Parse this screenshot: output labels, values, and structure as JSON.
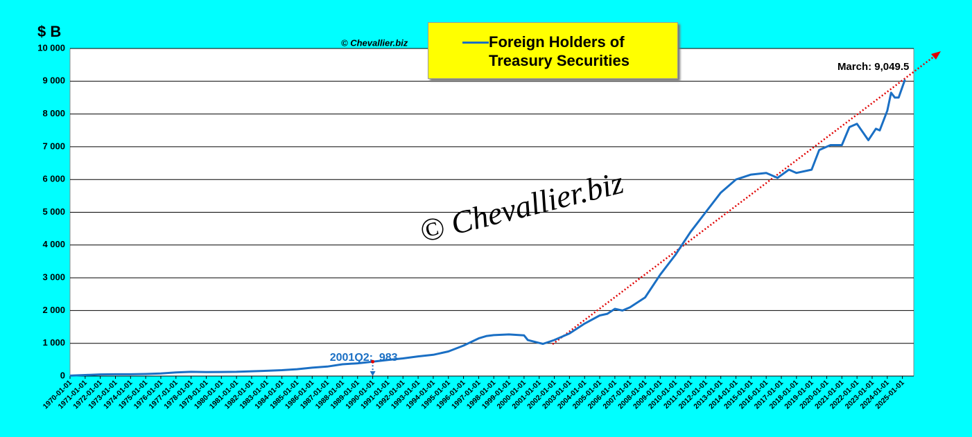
{
  "chart_data": {
    "type": "line",
    "y_label": "$ B",
    "credit": "© Chevallier.biz",
    "watermark": "© Chevallier.biz",
    "annotations": [
      {
        "text": "March: 9,049.5"
      },
      {
        "text": "2001Q2:  983"
      }
    ],
    "xlim": [
      1970,
      2025.75
    ],
    "ylim": [
      0,
      10000
    ],
    "yticks": [
      0,
      {
        "value": 1000,
        "label": "1 000"
      },
      {
        "value": 2000,
        "label": "2 000"
      },
      {
        "value": 3000,
        "label": "3 000"
      },
      {
        "value": 4000,
        "label": "4 000"
      },
      {
        "value": 5000,
        "label": "5 000"
      },
      {
        "value": 6000,
        "label": "6 000"
      },
      {
        "value": 7000,
        "label": "7 000"
      },
      {
        "value": 8000,
        "label": "8 000"
      },
      {
        "value": 9000,
        "label": "9 000"
      },
      {
        "value": 10000,
        "label": "10 000"
      }
    ],
    "xticks": [
      {
        "value": 1970,
        "label": "1970-01-01"
      },
      {
        "value": 1971,
        "label": "1971-01-01"
      },
      {
        "value": 1972,
        "label": "1972-01-01"
      },
      {
        "value": 1973,
        "label": "1973-01-01"
      },
      {
        "value": 1974,
        "label": "1974-01-01"
      },
      {
        "value": 1975,
        "label": "1975-01-01"
      },
      {
        "value": 1976,
        "label": "1976-01-01"
      },
      {
        "value": 1977,
        "label": "1977-01-01"
      },
      {
        "value": 1978,
        "label": "1978-01-01"
      },
      {
        "value": 1979,
        "label": "1979-01-01"
      },
      {
        "value": 1980,
        "label": "1980-01-01"
      },
      {
        "value": 1981,
        "label": "1981-01-01"
      },
      {
        "value": 1982,
        "label": "1982-01-01"
      },
      {
        "value": 1983,
        "label": "1983-01-01"
      },
      {
        "value": 1984,
        "label": "1984-01-01"
      },
      {
        "value": 1985,
        "label": "1985-01-01"
      },
      {
        "value": 1986,
        "label": "1986-01-01"
      },
      {
        "value": 1987,
        "label": "1987-01-01"
      },
      {
        "value": 1988,
        "label": "1988-01-01"
      },
      {
        "value": 1989,
        "label": "1989-01-01"
      },
      {
        "value": 1990,
        "label": "1990-01-01"
      },
      {
        "value": 1991,
        "label": "1991-01-01"
      },
      {
        "value": 1992,
        "label": "1992-01-01"
      },
      {
        "value": 1993,
        "label": "1993-01-01"
      },
      {
        "value": 1994,
        "label": "1994-01-01"
      },
      {
        "value": 1995,
        "label": "1995-01-01"
      },
      {
        "value": 1996,
        "label": "1996-01-01"
      },
      {
        "value": 1997,
        "label": "1997-01-01"
      },
      {
        "value": 1998,
        "label": "1998-01-01"
      },
      {
        "value": 1999,
        "label": "1999-01-01"
      },
      {
        "value": 2000,
        "label": "2000-01-01"
      },
      {
        "value": 2001,
        "label": "2001-01-01"
      },
      {
        "value": 2002,
        "label": "2002-01-01"
      },
      {
        "value": 2003,
        "label": "2003-01-01"
      },
      {
        "value": 2004,
        "label": "2004-01-01"
      },
      {
        "value": 2005,
        "label": "2005-01-01"
      },
      {
        "value": 2006,
        "label": "2006-01-01"
      },
      {
        "value": 2007,
        "label": "2007-01-01"
      },
      {
        "value": 2008,
        "label": "2008-01-01"
      },
      {
        "value": 2009,
        "label": "2009-01-01"
      },
      {
        "value": 2010,
        "label": "2010-01-01"
      },
      {
        "value": 2011,
        "label": "2011-01-01"
      },
      {
        "value": 2012,
        "label": "2012-01-01"
      },
      {
        "value": 2013,
        "label": "2013-01-01"
      },
      {
        "value": 2014,
        "label": "2014-01-01"
      },
      {
        "value": 2015,
        "label": "2015-01-01"
      },
      {
        "value": 2016,
        "label": "2016-01-01"
      },
      {
        "value": 2017,
        "label": "2017-01-01"
      },
      {
        "value": 2018,
        "label": "2018-01-01"
      },
      {
        "value": 2019,
        "label": "2019-01-01"
      },
      {
        "value": 2020,
        "label": "2020-01-01"
      },
      {
        "value": 2021,
        "label": "2021-01-01"
      },
      {
        "value": 2022,
        "label": "2022-01-01"
      },
      {
        "value": 2023,
        "label": "2023-01-01"
      },
      {
        "value": 2024,
        "label": "2024-01-01"
      },
      {
        "value": 2025,
        "label": "2025-01-01"
      }
    ],
    "grid": true,
    "series": [
      {
        "name": "Foreign Holders of Treasury Securities",
        "color": "#1a6fc4",
        "x": [
          1970,
          1971,
          1972,
          1973,
          1974,
          1975,
          1976,
          1977,
          1978,
          1979,
          1980,
          1981,
          1982,
          1983,
          1984,
          1985,
          1986,
          1987,
          1988,
          1989,
          1990,
          1991,
          1992,
          1993,
          1994,
          1995,
          1996,
          1997,
          1997.5,
          1998,
          1999,
          2000,
          2000.25,
          2001,
          2001.25,
          2002,
          2003,
          2004,
          2005,
          2005.5,
          2006,
          2006.5,
          2007,
          2008,
          2009,
          2010,
          2011,
          2012,
          2013,
          2014,
          2015,
          2016,
          2016.75,
          2017.5,
          2018,
          2019,
          2019.5,
          2020.25,
          2021,
          2021.5,
          2022,
          2022.75,
          2023.25,
          2023.5,
          2024,
          2024.25,
          2024.5,
          2024.75,
          2025.17
        ],
        "values": [
          13,
          32,
          50,
          55,
          56,
          63,
          78,
          110,
          130,
          120,
          125,
          130,
          145,
          160,
          180,
          210,
          255,
          290,
          360,
          390,
          440,
          490,
          540,
          600,
          650,
          750,
          930,
          1150,
          1220,
          1250,
          1270,
          1240,
          1100,
          1010,
          983,
          1100,
          1300,
          1600,
          1850,
          1900,
          2050,
          2000,
          2100,
          2400,
          3100,
          3700,
          4400,
          5000,
          5600,
          6000,
          6150,
          6200,
          6050,
          6300,
          6200,
          6300,
          6900,
          7050,
          7050,
          7600,
          7700,
          7200,
          7550,
          7500,
          8100,
          8650,
          8500,
          8500,
          9049.5
        ]
      }
    ]
  }
}
